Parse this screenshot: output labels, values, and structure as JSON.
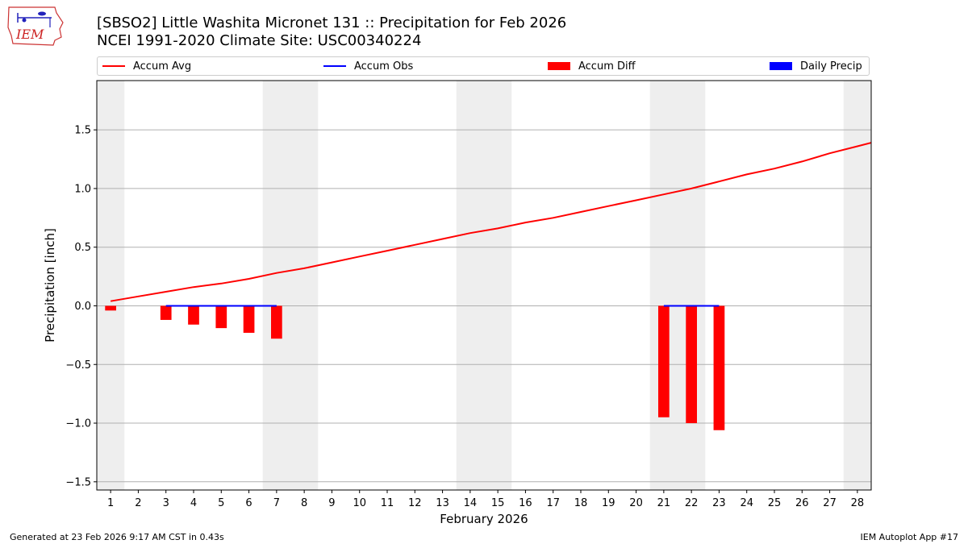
{
  "logo_text": "IEM",
  "title_line1": "[SBSO2] Little Washita Micronet 131 :: Precipitation for Feb 2026",
  "title_line2": "NCEI 1991-2020 Climate Site: USC00340224",
  "footer_left": "Generated at 23 Feb 2026 9:17 AM CST in 0.43s",
  "footer_right": "IEM Autoplot App #17",
  "colors": {
    "avg": "#ff0000",
    "obs": "#0000ff",
    "diff": "#ff0000",
    "daily": "#0000ff",
    "weekend": "#eeeeee",
    "grid": "#b0b0b0"
  },
  "chart_data": {
    "type": "bar",
    "title": "[SBSO2] Little Washita Micronet 131 :: Precipitation for Feb 2026",
    "xlabel": "February 2026",
    "ylabel": "Precipitation [inch]",
    "xlim": [
      0.5,
      28.5
    ],
    "ylim": [
      -1.57,
      1.92
    ],
    "y_ticks": [
      -1.5,
      -1.0,
      -0.5,
      0.0,
      0.5,
      1.0,
      1.5
    ],
    "y_tick_labels": [
      "−1.5",
      "−1.0",
      "−0.5",
      "0.0",
      "0.5",
      "1.0",
      "1.5"
    ],
    "x": [
      1,
      2,
      3,
      4,
      5,
      6,
      7,
      8,
      9,
      10,
      11,
      12,
      13,
      14,
      15,
      16,
      17,
      18,
      19,
      20,
      21,
      22,
      23,
      24,
      25,
      26,
      27,
      28
    ],
    "x_tick_labels": [
      "1",
      "2",
      "3",
      "4",
      "5",
      "6",
      "7",
      "8",
      "9",
      "10",
      "11",
      "12",
      "13",
      "14",
      "15",
      "16",
      "17",
      "18",
      "19",
      "20",
      "21",
      "22",
      "23",
      "24",
      "25",
      "26",
      "27",
      "28"
    ],
    "weekend_spans": [
      [
        0.5,
        1.5
      ],
      [
        6.5,
        8.5
      ],
      [
        13.5,
        15.5
      ],
      [
        20.5,
        22.5
      ],
      [
        27.5,
        28.5
      ]
    ],
    "grid": true,
    "legend": {
      "position": "top",
      "entries": [
        "Accum Avg",
        "Accum Obs",
        "Accum Diff",
        "Daily Precip"
      ]
    },
    "series": [
      {
        "name": "Accum Avg",
        "kind": "line",
        "x": [
          1,
          2,
          3,
          4,
          5,
          6,
          7,
          8,
          9,
          10,
          11,
          12,
          13,
          14,
          15,
          16,
          17,
          18,
          19,
          20,
          21,
          22,
          23,
          24,
          25,
          26,
          27,
          28,
          28.5
        ],
        "values": [
          0.04,
          0.08,
          0.12,
          0.16,
          0.19,
          0.23,
          0.28,
          0.32,
          0.37,
          0.42,
          0.47,
          0.52,
          0.57,
          0.62,
          0.66,
          0.71,
          0.75,
          0.8,
          0.85,
          0.9,
          0.95,
          1.0,
          1.06,
          1.12,
          1.17,
          1.23,
          1.3,
          1.36,
          1.39
        ]
      },
      {
        "name": "Accum Obs",
        "kind": "line",
        "segments": [
          {
            "x": [
              3,
              4,
              5,
              6,
              7
            ],
            "values": [
              0,
              0,
              0,
              0,
              0
            ]
          },
          {
            "x": [
              21,
              22,
              23
            ],
            "values": [
              0,
              0,
              0
            ]
          }
        ]
      },
      {
        "name": "Accum Diff",
        "kind": "bar",
        "x": [
          1,
          3,
          4,
          5,
          6,
          7,
          21,
          22,
          23
        ],
        "values": [
          -0.04,
          -0.12,
          -0.16,
          -0.19,
          -0.23,
          -0.28,
          -0.95,
          -1.0,
          -1.06
        ]
      },
      {
        "name": "Daily Precip",
        "kind": "bar",
        "x": [],
        "values": []
      }
    ]
  }
}
